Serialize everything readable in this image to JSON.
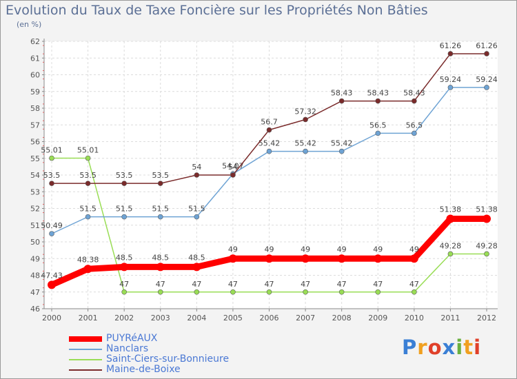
{
  "chart_data": {
    "type": "line",
    "title": "Evolution du Taux de Taxe Foncière sur les Propriétés Non Bâties",
    "subtitle": "(en %)",
    "x": [
      "2000",
      "2001",
      "2002",
      "2003",
      "2004",
      "2005",
      "2006",
      "2007",
      "2008",
      "2009",
      "2010",
      "2011",
      "2012"
    ],
    "ylim": [
      46,
      62
    ],
    "yticks": [
      46,
      47,
      48,
      49,
      50,
      51,
      52,
      53,
      54,
      55,
      56,
      57,
      58,
      59,
      60,
      61,
      62
    ],
    "grid": true,
    "legend_position": "bottom-left",
    "series": [
      {
        "name": "PUYRéAUX",
        "color": "#ff0000",
        "values": [
          47.43,
          48.38,
          48.5,
          48.5,
          48.5,
          49,
          49,
          49,
          49,
          49,
          49,
          51.38,
          51.38
        ],
        "labels": [
          "47.43",
          "48.38",
          "48.5",
          "48.5",
          "48.5",
          "49",
          "49",
          "49",
          "49",
          "49",
          "49",
          "51.38",
          "51.38"
        ]
      },
      {
        "name": "Nanclars",
        "color": "#6ea3d4",
        "values": [
          50.49,
          51.5,
          51.5,
          51.5,
          51.5,
          54.07,
          55.42,
          55.42,
          55.42,
          56.5,
          56.5,
          59.24,
          59.24
        ],
        "labels": [
          "50.49",
          "51.5",
          "51.5",
          "51.5",
          "51.5",
          "54.07",
          "55.42",
          "55.42",
          "55.42",
          "56.5",
          "56.5",
          "59.24",
          "59.24"
        ]
      },
      {
        "name": "Saint-Ciers-sur-Bonnieure",
        "color": "#99dd55",
        "values": [
          55.01,
          55.01,
          47,
          47,
          47,
          47,
          47,
          47,
          47,
          47,
          47,
          49.28,
          49.28
        ],
        "labels": [
          "55.01",
          "55.01",
          "47",
          "47",
          "47",
          "47",
          "47",
          "47",
          "47",
          "47",
          "47",
          "49.28",
          "49.28"
        ]
      },
      {
        "name": "Maine-de-Boixe",
        "color": "#7a2b2b",
        "values": [
          53.5,
          53.5,
          53.5,
          53.5,
          54,
          54,
          56.7,
          57.32,
          58.43,
          58.43,
          58.43,
          61.26,
          61.26
        ],
        "labels": [
          "53.5",
          "53.5",
          "53.5",
          "53.5",
          "54",
          "54",
          "56.7",
          "57.32",
          "58.43",
          "58.43",
          "58.43",
          "61.26",
          "61.26"
        ]
      }
    ]
  },
  "logo": {
    "text": "Proxiti",
    "letters": [
      {
        "ch": "P",
        "color": "#3a7fd5"
      },
      {
        "ch": "r",
        "color": "#f0a020"
      },
      {
        "ch": "o",
        "color": "#e0402a"
      },
      {
        "ch": "x",
        "color": "#3a7fd5"
      },
      {
        "ch": "i",
        "color": "#6ab040"
      },
      {
        "ch": "t",
        "color": "#f0a020"
      },
      {
        "ch": "i",
        "color": "#e0402a"
      }
    ]
  }
}
